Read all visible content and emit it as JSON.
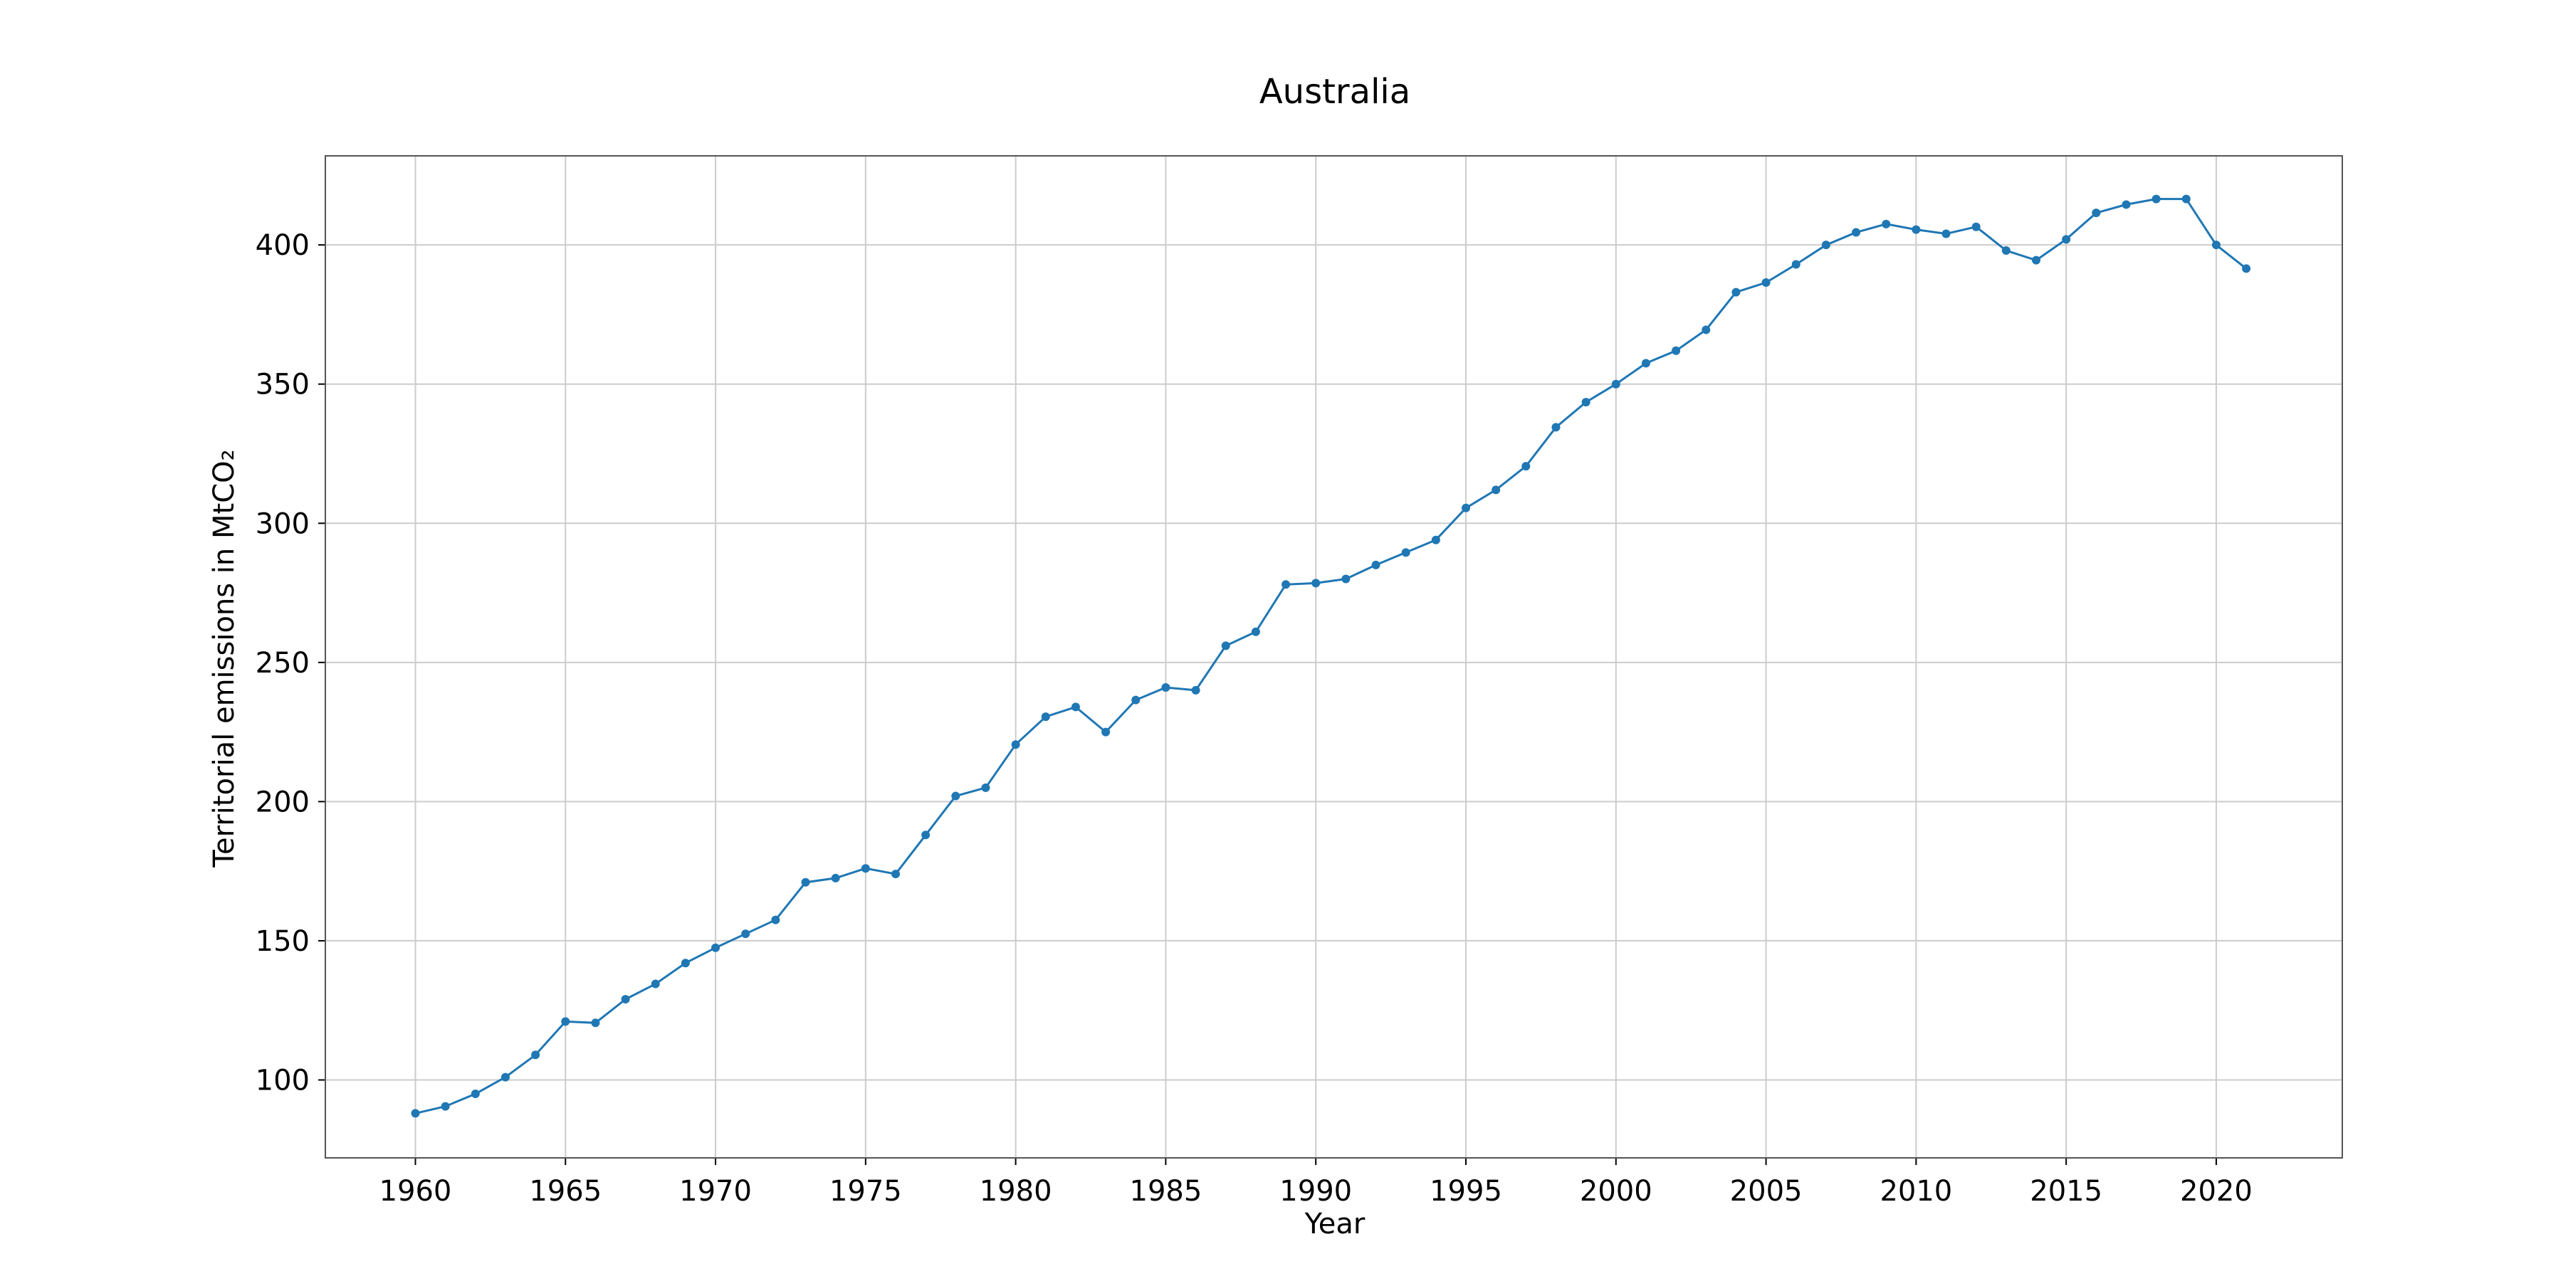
{
  "chart_data": {
    "type": "line",
    "title": "Australia",
    "xlabel": "Year",
    "ylabel": "Territorial emissions in MtCO₂",
    "xlim": [
      1957,
      2024.2
    ],
    "ylim": [
      72,
      432
    ],
    "xticks": [
      1960,
      1965,
      1970,
      1975,
      1980,
      1985,
      1990,
      1995,
      2000,
      2005,
      2010,
      2015,
      2020
    ],
    "yticks": [
      100,
      150,
      200,
      250,
      300,
      350,
      400
    ],
    "grid": true,
    "color": "#1f77b4",
    "x": [
      1960,
      1961,
      1962,
      1963,
      1964,
      1965,
      1966,
      1967,
      1968,
      1969,
      1970,
      1971,
      1972,
      1973,
      1974,
      1975,
      1976,
      1977,
      1978,
      1979,
      1980,
      1981,
      1982,
      1983,
      1984,
      1985,
      1986,
      1987,
      1988,
      1989,
      1990,
      1991,
      1992,
      1993,
      1994,
      1995,
      1996,
      1997,
      1998,
      1999,
      2000,
      2001,
      2002,
      2003,
      2004,
      2005,
      2006,
      2007,
      2008,
      2009,
      2010,
      2011,
      2012,
      2013,
      2014,
      2015,
      2016,
      2017,
      2018,
      2019,
      2020,
      2021
    ],
    "y": [
      88,
      90.5,
      95,
      101,
      109,
      121,
      120.5,
      129,
      134.5,
      142,
      147.5,
      152.5,
      157.5,
      171,
      172.5,
      176,
      174,
      188,
      202,
      205,
      220.5,
      230.5,
      234,
      225,
      236.5,
      241,
      240,
      256,
      261,
      278,
      278.5,
      280,
      285,
      289.5,
      294,
      305.5,
      312,
      320.5,
      334.5,
      343.5,
      350,
      357.5,
      362,
      369.5,
      383,
      386.5,
      393,
      400,
      404.5,
      407.5,
      405.5,
      404,
      406.5,
      398,
      394.5,
      402,
      411.5,
      414.5,
      416.5,
      416.5,
      400,
      391.5
    ]
  }
}
